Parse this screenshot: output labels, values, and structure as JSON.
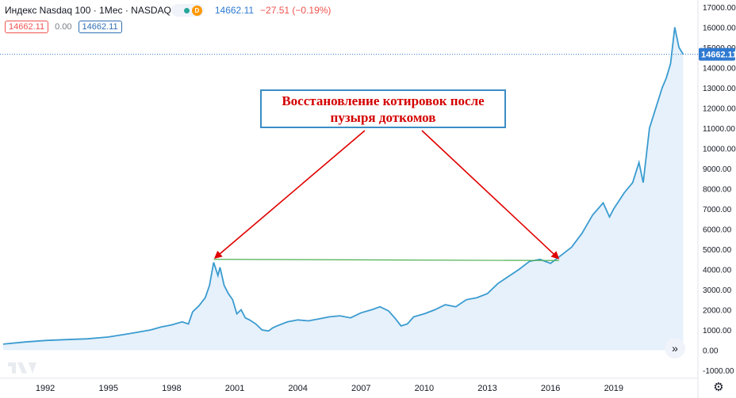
{
  "header": {
    "title": "Индекс Nasdaq 100 · 1Мес · NASDAQ",
    "badge": "D",
    "last": "14662.11",
    "change": "−27.51 (−0.19%)"
  },
  "quote": {
    "bid": "14662.11",
    "spread": "0.00",
    "ask": "14662.11"
  },
  "annotation": {
    "line1": "Восстановление котировок после",
    "line2": "пузыря доткомов"
  },
  "colors": {
    "line": "#3a9bd0",
    "area": "#e6f1fb",
    "arrow": "#e00000",
    "level": "#4caf50",
    "price_tag": "#2f7ad1"
  },
  "icons": {
    "nav": "double-chevron-right-icon",
    "settings": "gear-icon",
    "logo": "tradingview-logo-icon"
  },
  "chart_data": {
    "type": "area",
    "title": "Индекс Nasdaq 100",
    "ylim": [
      -1000,
      17000
    ],
    "y_ticks": [
      "17000.00",
      "16000.00",
      "15000.00",
      "14000.00",
      "13000.00",
      "12000.00",
      "11000.00",
      "10000.00",
      "9000.00",
      "8000.00",
      "7000.00",
      "6000.00",
      "5000.00",
      "4000.00",
      "3000.00",
      "2000.00",
      "1000.00",
      "0.00",
      "-1000.00"
    ],
    "x_ticks": [
      "1992",
      "1995",
      "1998",
      "2001",
      "2004",
      "2007",
      "2010",
      "2013",
      "2016",
      "2019"
    ],
    "x": [
      1990.0,
      1991.0,
      1992.0,
      1993.0,
      1994.0,
      1995.0,
      1996.0,
      1997.0,
      1997.5,
      1998.0,
      1998.5,
      1998.8,
      1999.0,
      1999.3,
      1999.6,
      1999.8,
      2000.0,
      2000.2,
      2000.3,
      2000.5,
      2000.7,
      2000.9,
      2001.1,
      2001.3,
      2001.5,
      2001.7,
      2002.0,
      2002.3,
      2002.6,
      2002.8,
      2003.0,
      2003.5,
      2004.0,
      2004.5,
      2005.0,
      2005.5,
      2006.0,
      2006.5,
      2007.0,
      2007.5,
      2007.9,
      2008.3,
      2008.6,
      2008.9,
      2009.2,
      2009.5,
      2010.0,
      2010.5,
      2011.0,
      2011.5,
      2012.0,
      2012.5,
      2013.0,
      2013.5,
      2014.0,
      2014.5,
      2015.0,
      2015.5,
      2016.0,
      2016.5,
      2017.0,
      2017.5,
      2018.0,
      2018.5,
      2018.8,
      2019.0,
      2019.5,
      2019.9,
      2020.2,
      2020.4,
      2020.7,
      2021.0,
      2021.3,
      2021.5,
      2021.7,
      2021.9,
      2022.1,
      2022.3
    ],
    "y": [
      300,
      400,
      480,
      520,
      560,
      650,
      820,
      1000,
      1150,
      1250,
      1400,
      1300,
      1900,
      2200,
      2600,
      3200,
      4350,
      3700,
      4100,
      3200,
      2800,
      2500,
      1800,
      2000,
      1600,
      1500,
      1300,
      1000,
      950,
      1100,
      1200,
      1400,
      1500,
      1450,
      1550,
      1650,
      1700,
      1600,
      1850,
      2000,
      2150,
      1950,
      1600,
      1200,
      1300,
      1650,
      1800,
      2000,
      2250,
      2150,
      2500,
      2600,
      2800,
      3300,
      3650,
      4000,
      4400,
      4500,
      4300,
      4700,
      5100,
      5800,
      6700,
      7300,
      6600,
      7000,
      7800,
      8300,
      9300,
      8300,
      11000,
      12000,
      13000,
      13500,
      14200,
      16000,
      15000,
      14662
    ],
    "level_line": {
      "from_x": 2000.0,
      "to_x": 2016.4,
      "y": 4500
    },
    "last_value": "14662.11"
  }
}
